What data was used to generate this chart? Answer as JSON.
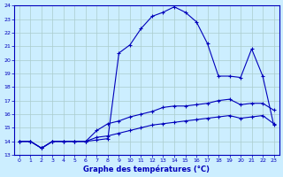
{
  "xlabel": "Graphe des températures (°C)",
  "bg_color": "#cceeff",
  "line_color": "#0000bb",
  "xlim": [
    -0.5,
    23.5
  ],
  "ylim": [
    13,
    24
  ],
  "yticks": [
    13,
    14,
    15,
    16,
    17,
    18,
    19,
    20,
    21,
    22,
    23,
    24
  ],
  "xticks": [
    0,
    1,
    2,
    3,
    4,
    5,
    6,
    7,
    8,
    9,
    10,
    11,
    12,
    13,
    14,
    15,
    16,
    17,
    18,
    19,
    20,
    21,
    22,
    23
  ],
  "line1_x": [
    0,
    1,
    2,
    3,
    4,
    5,
    6,
    7,
    8,
    9,
    10,
    11,
    12,
    13,
    14,
    15,
    16,
    17,
    18,
    19,
    20,
    21,
    22,
    23
  ],
  "line1_y": [
    14.0,
    14.0,
    13.5,
    14.0,
    14.0,
    14.0,
    14.0,
    14.1,
    14.2,
    20.5,
    21.1,
    22.3,
    23.2,
    23.5,
    23.9,
    23.5,
    22.8,
    21.2,
    18.8,
    18.8,
    18.7,
    20.8,
    18.8,
    15.2
  ],
  "line2_x": [
    0,
    1,
    2,
    3,
    4,
    5,
    6,
    7,
    8,
    9,
    10,
    11,
    12,
    13,
    14,
    15,
    16,
    17,
    18,
    19,
    20,
    21,
    22,
    23
  ],
  "line2_y": [
    14.0,
    14.0,
    13.5,
    14.0,
    14.0,
    14.0,
    14.0,
    14.8,
    15.3,
    15.5,
    15.8,
    16.0,
    16.2,
    16.5,
    16.6,
    16.6,
    16.7,
    16.8,
    17.0,
    17.1,
    16.7,
    16.8,
    16.8,
    16.3
  ],
  "line3_x": [
    0,
    1,
    2,
    3,
    4,
    5,
    6,
    7,
    8,
    9,
    10,
    11,
    12,
    13,
    14,
    15,
    16,
    17,
    18,
    19,
    20,
    21,
    22,
    23
  ],
  "line3_y": [
    14.0,
    14.0,
    13.5,
    14.0,
    14.0,
    14.0,
    14.0,
    14.3,
    14.4,
    14.6,
    14.8,
    15.0,
    15.2,
    15.3,
    15.4,
    15.5,
    15.6,
    15.7,
    15.8,
    15.9,
    15.7,
    15.8,
    15.9,
    15.3
  ],
  "grid_color": "#aacccc",
  "marker": "+",
  "markersize": 3,
  "linewidth": 0.8
}
